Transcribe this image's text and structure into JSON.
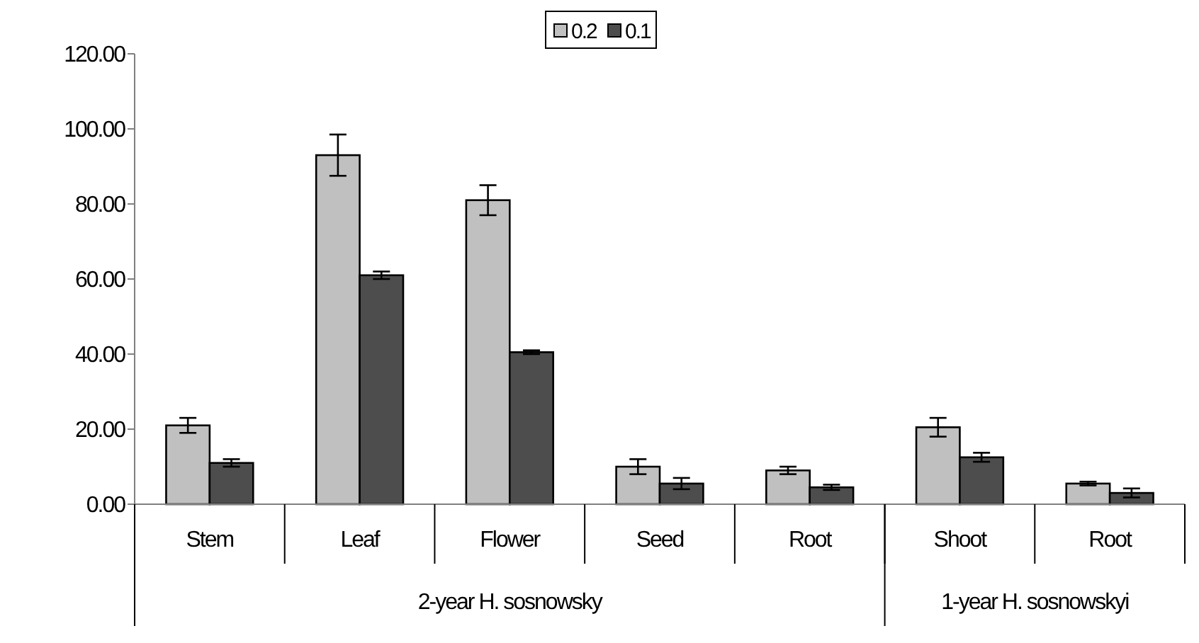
{
  "chart_data": {
    "type": "bar",
    "categories": [
      "Stem",
      "Leaf",
      "Flower",
      "Seed",
      "Root",
      "Shoot",
      "Root"
    ],
    "series": [
      {
        "name": "0.2",
        "color": "#c0c0c0",
        "values": [
          21,
          93,
          81,
          10,
          9,
          20.5,
          5.5
        ],
        "errors": [
          2,
          5.5,
          4,
          2,
          1,
          2.5,
          0.5
        ]
      },
      {
        "name": "0.1",
        "color": "#4d4d4d",
        "values": [
          11,
          61,
          40.5,
          5.5,
          4.5,
          12.5,
          3
        ],
        "errors": [
          1,
          1,
          0.5,
          1.5,
          0.7,
          1.2,
          1.2
        ]
      }
    ],
    "ylim": [
      0,
      120
    ],
    "yticks": [
      {
        "value": 0,
        "label": "0.00"
      },
      {
        "value": 20,
        "label": "20.00"
      },
      {
        "value": 40,
        "label": "40.00"
      },
      {
        "value": 60,
        "label": "60.00"
      },
      {
        "value": 80,
        "label": "80.00"
      },
      {
        "value": 100,
        "label": "100.00"
      },
      {
        "value": 120,
        "label": "120.00"
      }
    ],
    "annotations": [
      "2-year H. sosnowsky",
      "1-year H. sosnowskyi"
    ],
    "legend": "top",
    "grid": false
  }
}
